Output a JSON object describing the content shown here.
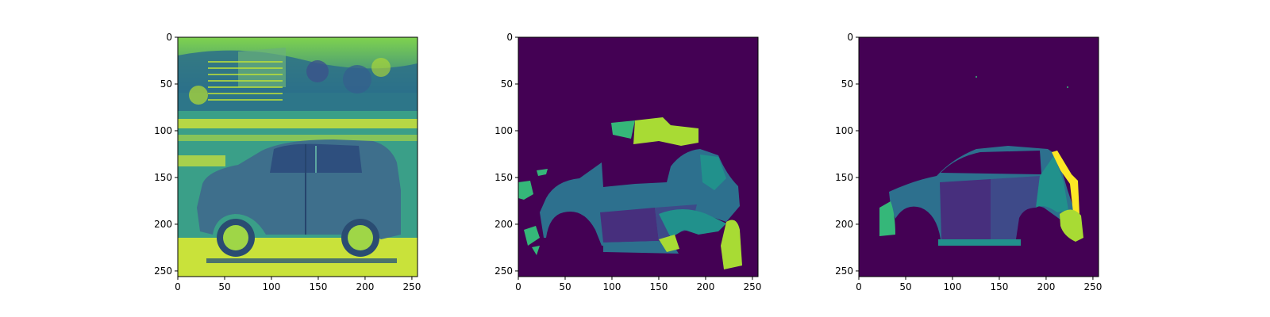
{
  "chart_data": [
    {
      "type": "heatmap",
      "panel": "original-image",
      "image_size": [
        256,
        256
      ],
      "xlim": [
        0,
        256
      ],
      "ylim": [
        256,
        0
      ],
      "x_ticks": [
        0,
        50,
        100,
        150,
        200,
        250
      ],
      "y_ticks": [
        0,
        50,
        100,
        150,
        200,
        250
      ],
      "x_tick_labels": [
        "0",
        "50",
        "100",
        "150",
        "200",
        "250"
      ],
      "y_tick_labels": [
        "0",
        "50",
        "100",
        "150",
        "200",
        "250"
      ],
      "colormap": "viridis",
      "background_color": "#3a9f88",
      "content": "grayscale photo of an SUV rendered with viridis colormap"
    },
    {
      "type": "heatmap",
      "panel": "predicted-segmentation",
      "image_size": [
        256,
        256
      ],
      "xlim": [
        0,
        256
      ],
      "ylim": [
        256,
        0
      ],
      "x_ticks": [
        0,
        50,
        100,
        150,
        200,
        250
      ],
      "y_ticks": [
        0,
        50,
        100,
        150,
        200,
        250
      ],
      "x_tick_labels": [
        "0",
        "50",
        "100",
        "150",
        "200",
        "250"
      ],
      "y_tick_labels": [
        "0",
        "50",
        "100",
        "150",
        "200",
        "250"
      ],
      "colormap": "viridis",
      "background_color": "#440154",
      "segment_colors": [
        "#35b779",
        "#a8db34",
        "#2d708e",
        "#3e4a89",
        "#472f7d",
        "#21918c"
      ]
    },
    {
      "type": "heatmap",
      "panel": "ground-truth-segmentation",
      "image_size": [
        256,
        256
      ],
      "xlim": [
        0,
        256
      ],
      "ylim": [
        256,
        0
      ],
      "x_ticks": [
        0,
        50,
        100,
        150,
        200,
        250
      ],
      "y_ticks": [
        0,
        50,
        100,
        150,
        200,
        250
      ],
      "x_tick_labels": [
        "0",
        "50",
        "100",
        "150",
        "200",
        "250"
      ],
      "y_tick_labels": [
        "0",
        "50",
        "100",
        "150",
        "200",
        "250"
      ],
      "colormap": "viridis",
      "background_color": "#440154",
      "segment_colors": [
        "#2d708e",
        "#472f7d",
        "#3e4a89",
        "#21918c",
        "#fde725",
        "#a8db34",
        "#35b779"
      ]
    }
  ]
}
